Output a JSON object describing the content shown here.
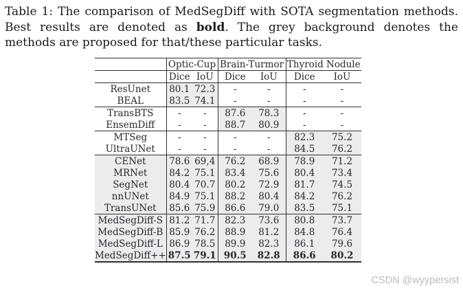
{
  "page": {
    "caption": {
      "text_before_bold": "Table 1: The comparison of MedSegDiff with SOTA segmentation methods. Best results are denoted as ",
      "bold_word": "bold",
      "text_after_bold": ". The grey background denotes the methods are proposed for that/these particular tasks."
    },
    "watermark": "CSDN @wyypersist"
  },
  "table": {
    "group_headers": [
      "Optic-Cup",
      "Brain-Turmor",
      "Thyroid Nodule"
    ],
    "sub_headers": [
      "Dice",
      "IoU",
      "Dice",
      "IoU",
      "Dice",
      "IoU"
    ],
    "rows": [
      {
        "method": "ResUnet",
        "values": [
          "80.1",
          "72.3",
          "-",
          "-",
          "-",
          "-"
        ],
        "highlight": "optic",
        "group_start": false,
        "bold_values": false
      },
      {
        "method": "BEAL",
        "values": [
          "83.5",
          "74.1",
          "-",
          "-",
          "-",
          "-"
        ],
        "highlight": "optic",
        "group_start": false,
        "bold_values": false
      },
      {
        "method": "TransBTS",
        "values": [
          "-",
          "-",
          "87.6",
          "78.3",
          "-",
          "-"
        ],
        "highlight": "brain",
        "group_start": true,
        "bold_values": false
      },
      {
        "method": "EnsemDiff",
        "values": [
          "-",
          "-",
          "88.7",
          "80.9",
          "-",
          "-"
        ],
        "highlight": "brain",
        "group_start": false,
        "bold_values": false
      },
      {
        "method": "MTSeg",
        "values": [
          "-",
          "-",
          "-",
          "-",
          "82.3",
          "75.2"
        ],
        "highlight": "thyroid",
        "group_start": true,
        "bold_values": false
      },
      {
        "method": "UltraUNet",
        "values": [
          "-",
          "-",
          "-",
          "-",
          "84.5",
          "76.2"
        ],
        "highlight": "thyroid",
        "group_start": false,
        "bold_values": false
      },
      {
        "method": "CENet",
        "values": [
          "78.6",
          "69,4",
          "76.2",
          "68.9",
          "78.9",
          "71.2"
        ],
        "highlight": "all",
        "group_start": true,
        "bold_values": false
      },
      {
        "method": "MRNet",
        "values": [
          "84.2",
          "75.1",
          "83.4",
          "75.6",
          "80.4",
          "73.4"
        ],
        "highlight": "all",
        "group_start": false,
        "bold_values": false
      },
      {
        "method": "SegNet",
        "values": [
          "80.4",
          "70.7",
          "80.2",
          "72.9",
          "81.7",
          "74.5"
        ],
        "highlight": "all",
        "group_start": false,
        "bold_values": false
      },
      {
        "method": "nnUNet",
        "values": [
          "84.9",
          "75.1",
          "88.2",
          "80.4",
          "84.2",
          "76.2"
        ],
        "highlight": "all",
        "group_start": false,
        "bold_values": false
      },
      {
        "method": "TransUNet",
        "values": [
          "85.6",
          "75.9",
          "86.6",
          "79.0",
          "83.5",
          "75.1"
        ],
        "highlight": "all",
        "group_start": false,
        "bold_values": false
      },
      {
        "method": "MedSegDiff-S",
        "values": [
          "81.2",
          "71.7",
          "82.3",
          "73.6",
          "80.8",
          "73.7"
        ],
        "highlight": "all",
        "group_start": true,
        "bold_values": false
      },
      {
        "method": "MedSegDiff-B",
        "values": [
          "85.9",
          "76.2",
          "88.9",
          "81.2",
          "84.8",
          "76.4"
        ],
        "highlight": "all",
        "group_start": false,
        "bold_values": false
      },
      {
        "method": "MedSegDiff-L",
        "values": [
          "86.9",
          "78.5",
          "89.9",
          "82.3",
          "86.1",
          "79.6"
        ],
        "highlight": "all",
        "group_start": false,
        "bold_values": false
      },
      {
        "method": "MedSegDiff++",
        "values": [
          "87.5",
          "79.1",
          "90.5",
          "82.8",
          "86.6",
          "80.2"
        ],
        "highlight": "all",
        "group_start": false,
        "bold_values": true
      }
    ]
  },
  "colors": {
    "highlight_grey": "#ececec",
    "table_text": "#26262e",
    "caption_text": "#1b1b1b",
    "rule_color": "#2e2e2e",
    "watermark_grey": "#b9bbbd"
  }
}
